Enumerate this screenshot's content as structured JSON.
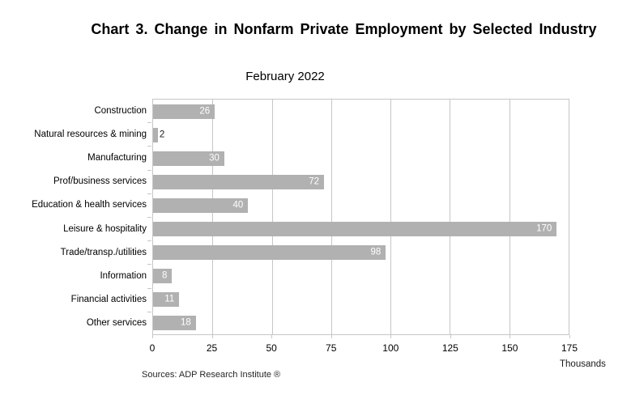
{
  "header": {
    "title": "Chart 3. Change in Nonfarm Private Employment by Selected Industry"
  },
  "chart_data": {
    "type": "bar",
    "orientation": "horizontal",
    "title": "February 2022",
    "categories": [
      "Construction",
      "Natural resources & mining",
      "Manufacturing",
      "Prof/business services",
      "Education & health services",
      "Leisure & hospitality",
      "Trade/transp./utilities",
      "Information",
      "Financial activities",
      "Other services"
    ],
    "values": [
      26,
      2,
      30,
      72,
      40,
      170,
      98,
      8,
      11,
      18
    ],
    "xlim": [
      0,
      175
    ],
    "xticks": [
      0,
      25,
      50,
      75,
      100,
      125,
      150,
      175
    ],
    "xlabel": "Thousands",
    "grid": true,
    "legend": "none",
    "bar_color": "#b1b1b1",
    "gridline_color": "#c6c6c6",
    "value_label_color_inside": "#ffffff",
    "value_label_color_outside": "#1a1a1a"
  },
  "footer": {
    "source": "Sources: ADP Research Institute ®"
  }
}
